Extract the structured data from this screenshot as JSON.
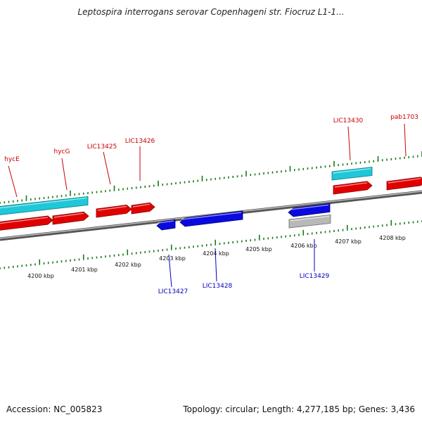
{
  "title": "Leptospira interrogans serovar Copenhageni str. Fiocruz L1-1...",
  "footer": {
    "accession": "Accession: NC_005823",
    "stats": "Topology: circular; Length: 4,277,185 bp; Genes: 3,436"
  },
  "colors": {
    "forward_gene": "#e00000",
    "reverse_gene": "#0a0ae0",
    "rna_gene": "#1ec8d8",
    "pseudo_gene": "#b8b8b8",
    "tick": "#1a7a1a",
    "backbone": "#888888"
  },
  "upper_scale": {
    "first_kbp": 4200,
    "last_kbp": 4208
  },
  "lower_scale": {
    "labels": [
      "4200 kbp",
      "4201 kbp",
      "4202 kbp",
      "4203 kbp",
      "4204 kbp",
      "4205 kbp",
      "4206 kbp",
      "4207 kbp",
      "4208 kbp"
    ]
  },
  "genes": {
    "forward": [
      {
        "label": "hycE",
        "type": "rna"
      },
      {
        "label": "",
        "type": "forward"
      },
      {
        "label": "hycG",
        "type": "forward"
      },
      {
        "label": "LIC13425",
        "type": "forward"
      },
      {
        "label": "LIC13426",
        "type": "forward"
      },
      {
        "label": "",
        "type": "rna"
      },
      {
        "label": "LIC13430",
        "type": "forward"
      },
      {
        "label": "pab1703",
        "type": "forward"
      }
    ],
    "reverse": [
      {
        "label": "LIC13427",
        "type": "reverse"
      },
      {
        "label": "LIC13428",
        "type": "reverse"
      },
      {
        "label": "",
        "type": "reverse"
      },
      {
        "label": "LIC13429",
        "type": "pseudo"
      }
    ]
  }
}
